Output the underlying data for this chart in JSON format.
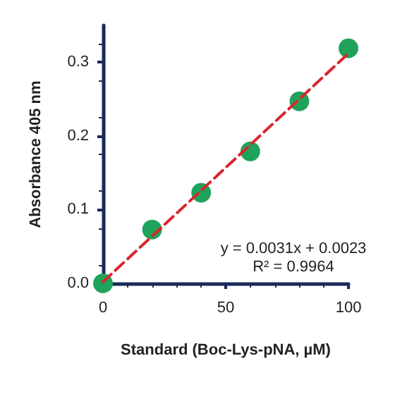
{
  "chart_data": {
    "type": "scatter",
    "xlabel": "Standard (Boc-Lys-pNA, µM)",
    "ylabel": "Absorbance 405 nm",
    "x": [
      0,
      20,
      40,
      60,
      80,
      100
    ],
    "series": [
      {
        "color": "#1fa35a",
        "values": [
          0,
          0.073,
          0.123,
          0.179,
          0.247,
          0.319
        ]
      },
      {
        "type": "line",
        "color": "#d9262b",
        "line_style": "dashed",
        "marker": "none",
        "x": [
          0,
          100
        ],
        "values": [
          0.002,
          0.312
        ]
      }
    ],
    "xlim": [
      0,
      100
    ],
    "xticks": [
      0,
      50,
      100
    ],
    "ylim": [
      0,
      0.35
    ],
    "yticks": [
      {
        "value": 0,
        "label": "0.0"
      },
      0.1,
      0.2,
      0.3
    ],
    "annotations": [
      "y = 0.0031x + 0.0023",
      "R² = 0.9964"
    ],
    "marker": "circle",
    "grid": false
  }
}
